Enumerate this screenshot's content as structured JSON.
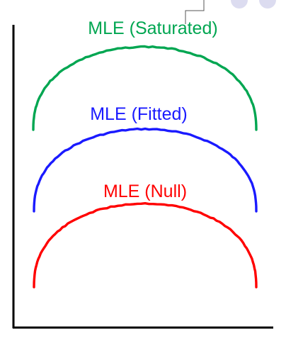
{
  "colors": {
    "saturated": "#00a651",
    "fitted": "#1a1aff",
    "null": "#ff0000",
    "axis": "#000000",
    "dot": "#dcdcf0"
  },
  "curves": {
    "saturated": {
      "label": "MLE (Saturated)"
    },
    "fitted": {
      "label": "MLE (Fitted)"
    },
    "null": {
      "label": "MLE (Null)"
    }
  }
}
